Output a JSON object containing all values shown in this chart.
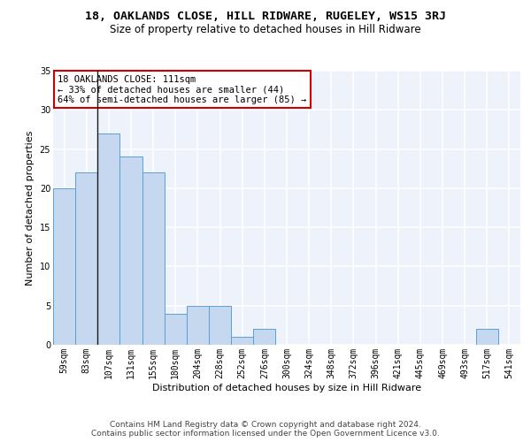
{
  "title": "18, OAKLANDS CLOSE, HILL RIDWARE, RUGELEY, WS15 3RJ",
  "subtitle": "Size of property relative to detached houses in Hill Ridware",
  "xlabel": "Distribution of detached houses by size in Hill Ridware",
  "ylabel": "Number of detached properties",
  "footer_line1": "Contains HM Land Registry data © Crown copyright and database right 2024.",
  "footer_line2": "Contains public sector information licensed under the Open Government Licence v3.0.",
  "categories": [
    "59sqm",
    "83sqm",
    "107sqm",
    "131sqm",
    "155sqm",
    "180sqm",
    "204sqm",
    "228sqm",
    "252sqm",
    "276sqm",
    "300sqm",
    "324sqm",
    "348sqm",
    "372sqm",
    "396sqm",
    "421sqm",
    "445sqm",
    "469sqm",
    "493sqm",
    "517sqm",
    "541sqm"
  ],
  "values": [
    20,
    22,
    27,
    24,
    22,
    4,
    5,
    5,
    1,
    2,
    0,
    0,
    0,
    0,
    0,
    0,
    0,
    0,
    0,
    2,
    0
  ],
  "bar_color": "#c5d8f0",
  "bar_edge_color": "#5a9fd4",
  "vline_x_index": 2,
  "vline_color": "#1a1a1a",
  "ylim": [
    0,
    35
  ],
  "yticks": [
    0,
    5,
    10,
    15,
    20,
    25,
    30,
    35
  ],
  "background_color": "#eef2fb",
  "grid_color": "#ffffff",
  "annotation_box_color": "#ffffff",
  "annotation_box_edge_color": "#cc0000",
  "annotation_line1": "18 OAKLANDS CLOSE: 111sqm",
  "annotation_line2": "← 33% of detached houses are smaller (44)",
  "annotation_line3": "64% of semi-detached houses are larger (85) →",
  "title_fontsize": 9.5,
  "subtitle_fontsize": 8.5,
  "xlabel_fontsize": 8,
  "ylabel_fontsize": 8,
  "tick_fontsize": 7,
  "annotation_fontsize": 7.5,
  "footer_fontsize": 6.5
}
